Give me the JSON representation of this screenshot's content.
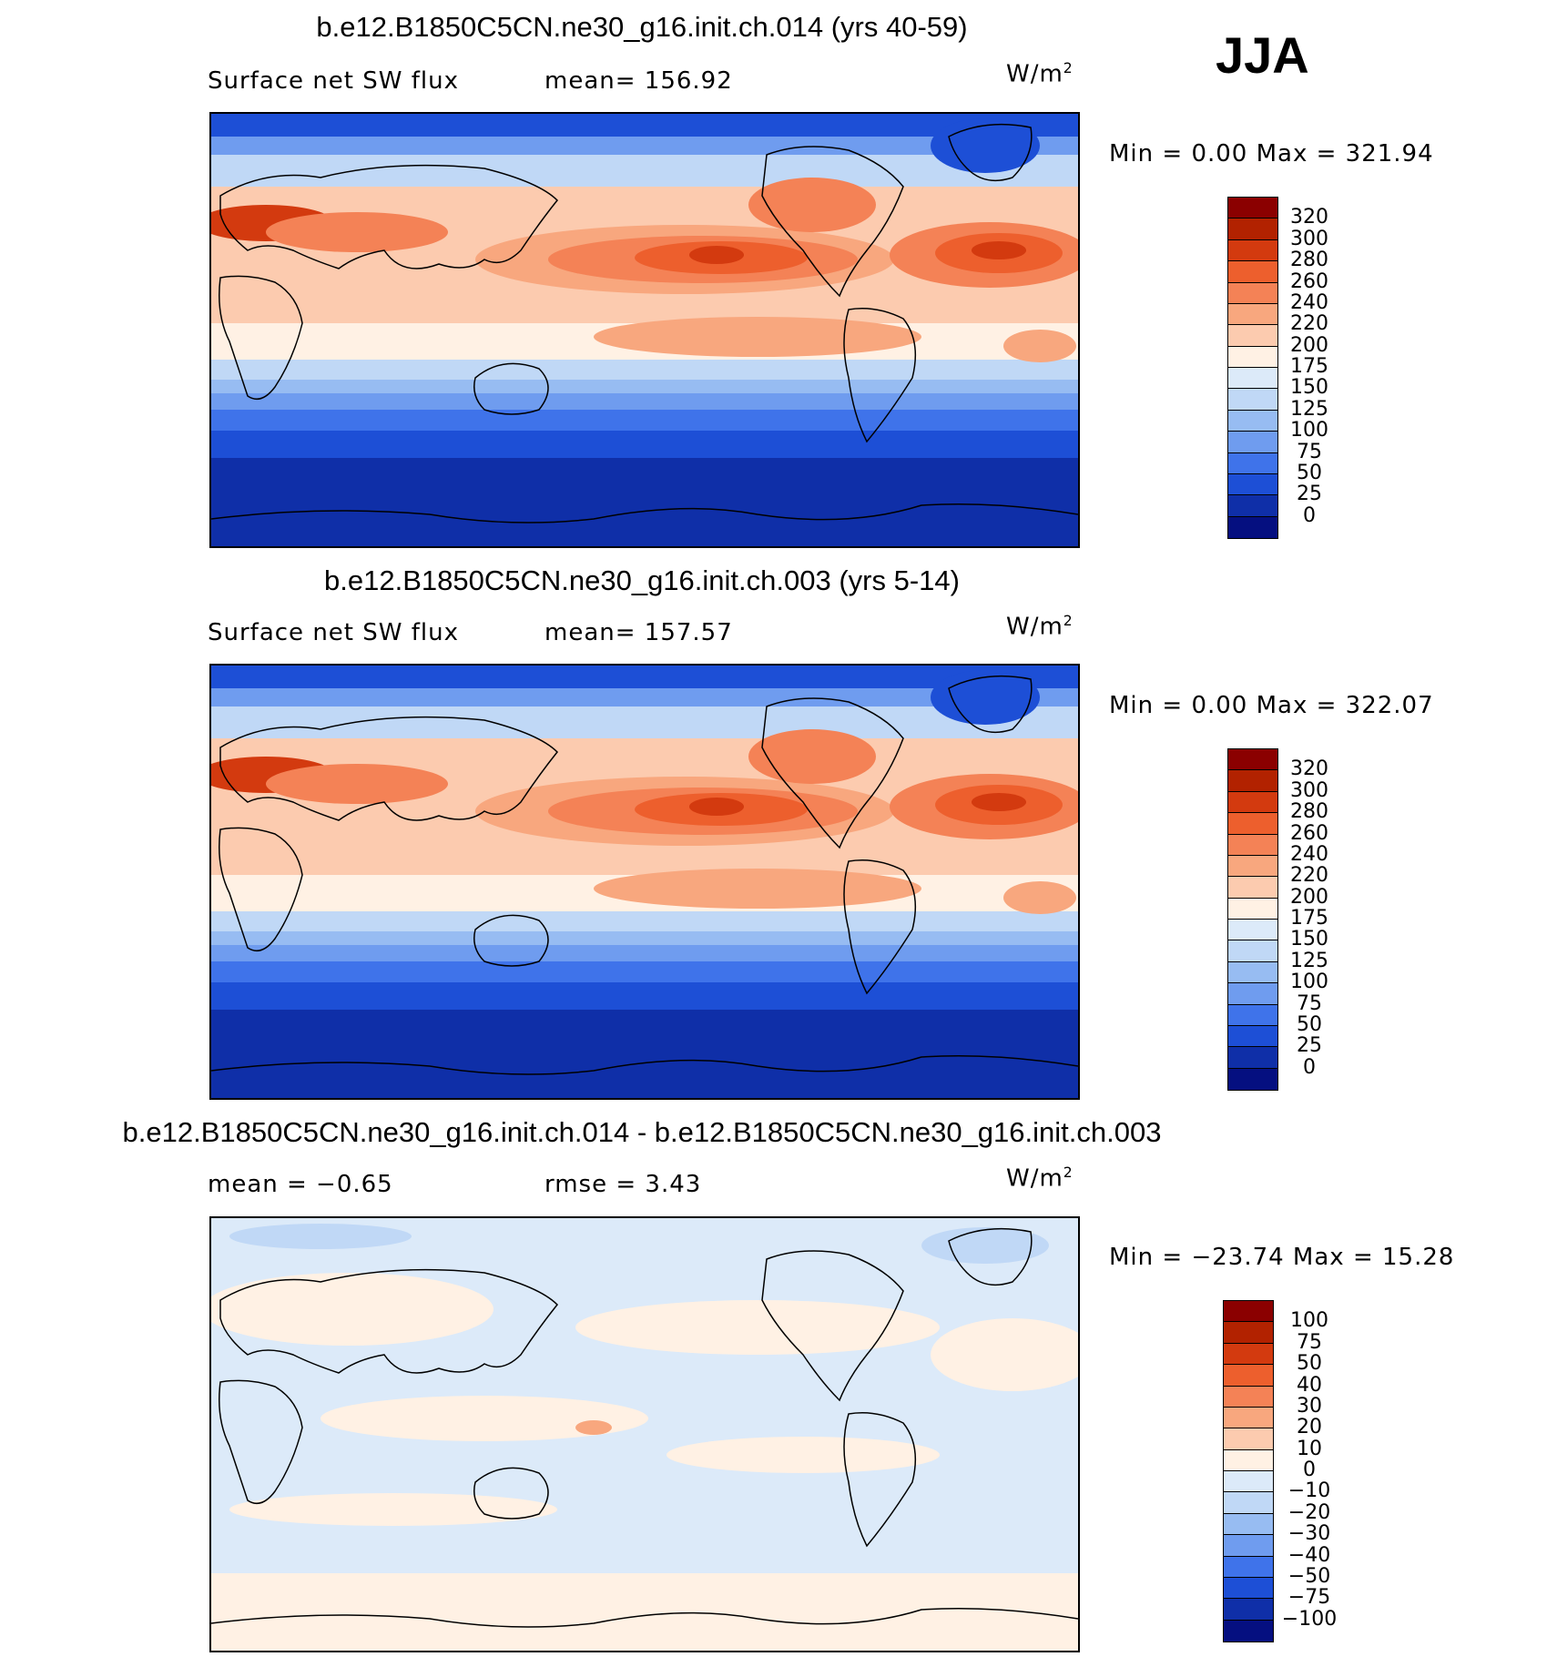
{
  "season": "JJA",
  "units_prefix": "W/m",
  "units_sup": "2",
  "panels": [
    {
      "title": "b.e12.B1850C5CN.ne30_g16.init.ch.014 (yrs 40-59)",
      "left_label": "Surface net SW flux",
      "stat_label": "mean= 156.92",
      "minmax": "Min =    0.00 Max = 321.94",
      "colorbar": {
        "labels": [
          "320",
          "300",
          "280",
          "260",
          "240",
          "220",
          "200",
          "175",
          "150",
          "125",
          "100",
          "75",
          "50",
          "25",
          "0"
        ],
        "colors": [
          "#8b0000",
          "#b22200",
          "#d33a0f",
          "#ed5f2d",
          "#f48256",
          "#f8a77e",
          "#fccbaf",
          "#fff1e4",
          "#dceaf9",
          "#c0d8f6",
          "#97bcf2",
          "#6f9cef",
          "#3f73ea",
          "#1d4fd6",
          "#0f2fa8",
          "#050f80"
        ]
      },
      "map_fill": "anomaly-free"
    },
    {
      "title": "b.e12.B1850C5CN.ne30_g16.init.ch.003 (yrs 5-14)",
      "left_label": "Surface net SW flux",
      "stat_label": "mean= 157.57",
      "minmax": "Min =    0.00 Max = 322.07",
      "colorbar": {
        "labels": [
          "320",
          "300",
          "280",
          "260",
          "240",
          "220",
          "200",
          "175",
          "150",
          "125",
          "100",
          "75",
          "50",
          "25",
          "0"
        ],
        "colors": [
          "#8b0000",
          "#b22200",
          "#d33a0f",
          "#ed5f2d",
          "#f48256",
          "#f8a77e",
          "#fccbaf",
          "#fff1e4",
          "#dceaf9",
          "#c0d8f6",
          "#97bcf2",
          "#6f9cef",
          "#3f73ea",
          "#1d4fd6",
          "#0f2fa8",
          "#050f80"
        ]
      }
    },
    {
      "title": "b.e12.B1850C5CN.ne30_g16.init.ch.014 - b.e12.B1850C5CN.ne30_g16.init.ch.003",
      "left_label": "mean =   −0.65",
      "stat_label": "rmse =    3.43",
      "minmax": "Min = −23.74 Max =   15.28",
      "colorbar": {
        "labels": [
          "100",
          "75",
          "50",
          "40",
          "30",
          "20",
          "10",
          "0",
          "−10",
          "−20",
          "−30",
          "−40",
          "−50",
          "−75",
          "−100"
        ],
        "colors": [
          "#8b0000",
          "#b22200",
          "#d33a0f",
          "#ed5f2d",
          "#f48256",
          "#f8a77e",
          "#fccbaf",
          "#fff1e4",
          "#dceaf9",
          "#c0d8f6",
          "#97bcf2",
          "#6f9cef",
          "#3f73ea",
          "#1d4fd6",
          "#0f2fa8",
          "#050f80"
        ]
      }
    }
  ]
}
